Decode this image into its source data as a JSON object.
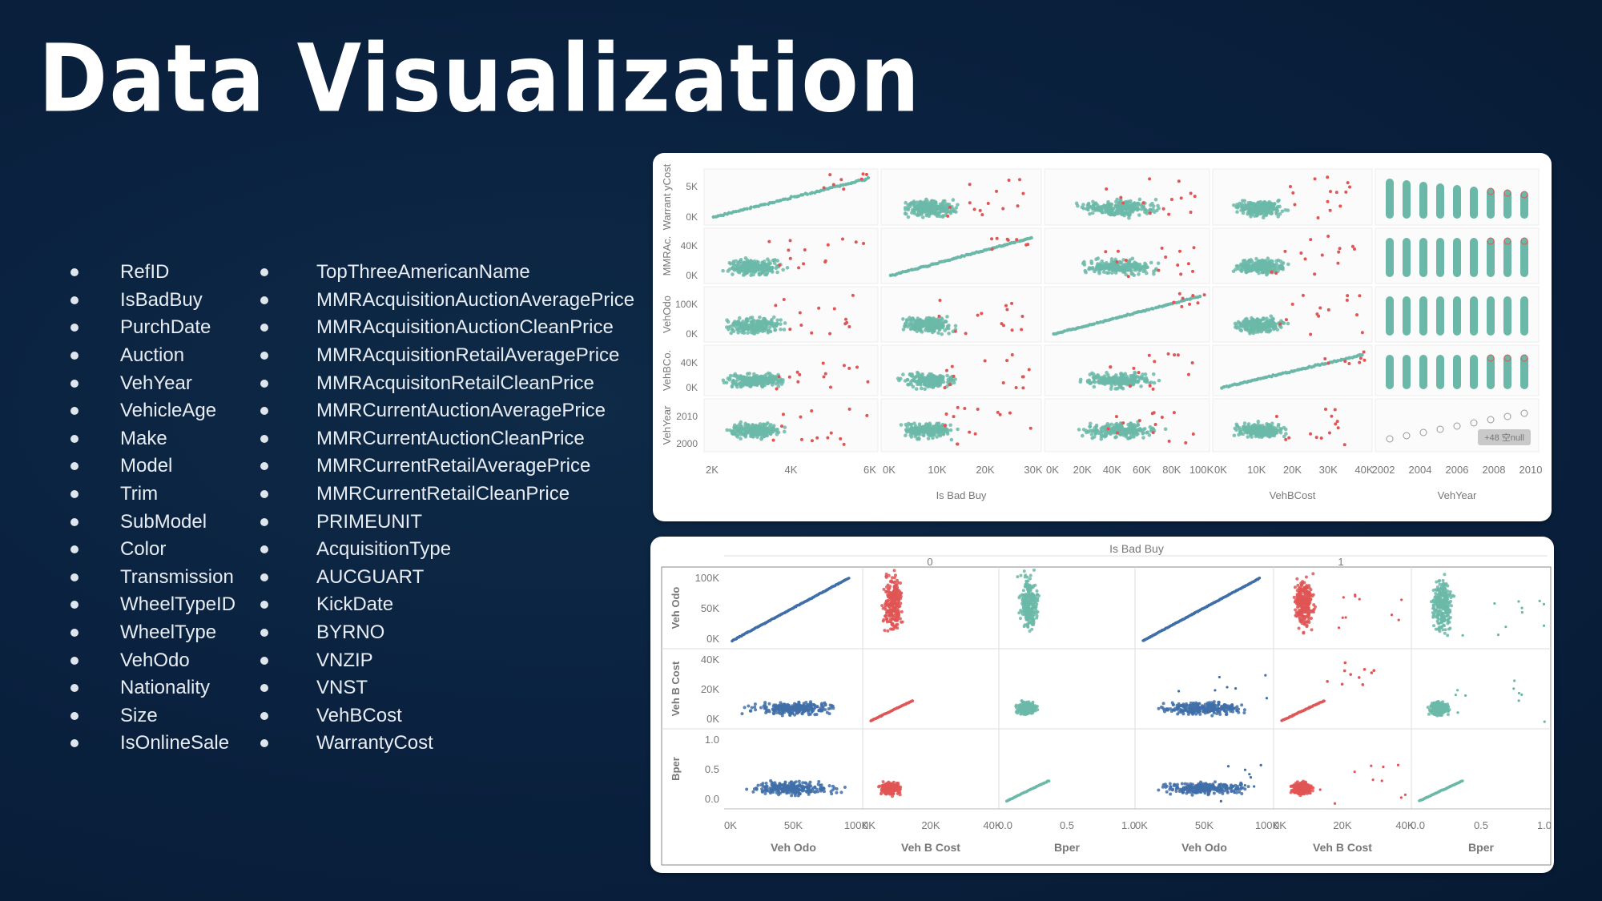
{
  "title": "Data Visualization",
  "columns_left": [
    "RefID",
    "IsBadBuy",
    "PurchDate",
    "Auction",
    "VehYear",
    "VehicleAge",
    "Make",
    "Model",
    "Trim",
    "SubModel",
    "Color",
    "Transmission",
    "WheelTypeID",
    "WheelType",
    "VehOdo",
    "Nationality",
    "Size",
    "IsOnlineSale"
  ],
  "columns_right": [
    "TopThreeAmericanName",
    "MMRAcquisitionAuctionAveragePrice",
    "MMRAcquisitionAuctionCleanPrice",
    "MMRAcquisitionRetailAveragePrice",
    "MMRAcquisitonRetailCleanPrice",
    "MMRCurrentAuctionAveragePrice",
    "MMRCurrentAuctionCleanPrice",
    "MMRCurrentRetailAveragePrice",
    "MMRCurrentRetailCleanPrice",
    "PRIMEUNIT",
    "AcquisitionType",
    "AUCGUART",
    "KickDate",
    "BYRNO",
    "VNZIP",
    "VNST",
    "VehBCost",
    "WarrantyCost"
  ],
  "colors": {
    "teal": "#6bb8a8",
    "red": "#e05555",
    "blue": "#3f6ea8",
    "background": "#0a2240"
  },
  "chart_data": [
    {
      "type": "scatter",
      "description_kind": "scatter matrix",
      "rows": [
        "Warranty Cost",
        "MMRAc...",
        "VehOdo",
        "VehBCo...",
        "VehYear"
      ],
      "row_labels": [
        "Warrant yCost",
        "MMRAc.",
        "VehOdo",
        "VehBCo.",
        "VehYear"
      ],
      "row_ticks": [
        [
          "5K",
          "0K"
        ],
        [
          "40K",
          "0K"
        ],
        [
          "100K",
          "0K"
        ],
        [
          "40K",
          "0K"
        ],
        [
          "2010",
          "2000"
        ]
      ],
      "x_ticks": [
        [
          "2K",
          "4K",
          "6K"
        ],
        [
          "0K",
          "10K",
          "20K",
          "30K"
        ],
        [
          "0K",
          "20K",
          "40K",
          "60K",
          "80K",
          "100K"
        ],
        [
          "0K",
          "10K",
          "20K",
          "30K",
          "40K"
        ],
        [
          "2002",
          "2004",
          "2006",
          "2008",
          "2010"
        ]
      ],
      "x_labels": [
        "",
        "Is Bad Buy",
        "",
        "VehBCost",
        "VehYear"
      ],
      "badge": "+48 空null"
    },
    {
      "type": "scatter",
      "description_kind": "scatter matrix faceted by Is Bad Buy",
      "header": "Is Bad Buy",
      "facets": [
        "0",
        "1"
      ],
      "rows": [
        "Veh Odo",
        "Veh B Cost",
        "Bper"
      ],
      "row_ticks": [
        [
          "100K",
          "50K",
          "0K"
        ],
        [
          "40K",
          "20K",
          "0K"
        ],
        [
          "1.0",
          "0.5",
          "0.0"
        ]
      ],
      "x_labels": [
        "Veh Odo",
        "Veh B Cost",
        "Bper",
        "Veh Odo",
        "Veh B Cost",
        "Bper"
      ],
      "x_ticks": [
        [
          "0K",
          "50K",
          "100K"
        ],
        [
          "0K",
          "20K",
          "40K"
        ],
        [
          "0.0",
          "0.5",
          "1.0"
        ],
        [
          "0K",
          "50K",
          "100K"
        ],
        [
          "0K",
          "20K",
          "40K"
        ],
        [
          "0.0",
          "0.5",
          "1.0"
        ]
      ]
    }
  ]
}
